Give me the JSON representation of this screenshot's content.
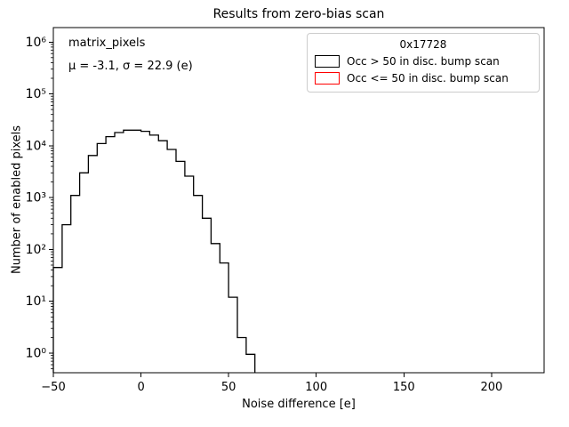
{
  "title": "Results from zero-bias scan",
  "axes": {
    "xlabel": "Noise difference [e]",
    "ylabel": "Number of enabled pixels"
  },
  "annotations": {
    "dataset": "matrix_pixels",
    "stats": "μ = -3.1, σ = 22.9 (e)"
  },
  "legend": {
    "title": "0x17728",
    "entries": [
      {
        "label": "Occ > 50 in disc. bump scan",
        "color": "#000000"
      },
      {
        "label": "Occ <= 50 in disc. bump scan",
        "color": "#ff0000"
      }
    ]
  },
  "chart_data": {
    "type": "bar",
    "histtype": "step-histogram",
    "title": "Results from zero-bias scan",
    "xlabel": "Noise difference [e]",
    "ylabel": "Number of enabled pixels",
    "yscale": "log",
    "xlim": [
      -50,
      230
    ],
    "ylim": [
      0.42,
      1900000
    ],
    "x_ticks": [
      -50,
      0,
      50,
      100,
      150,
      200
    ],
    "y_tick_exponents": [
      0,
      1,
      2,
      3,
      4,
      5,
      6
    ],
    "bin_edges": [
      -50,
      -45,
      -40,
      -35,
      -30,
      -25,
      -20,
      -15,
      -10,
      -5,
      0,
      5,
      10,
      15,
      20,
      25,
      30,
      35,
      40,
      45,
      50,
      55,
      60,
      65
    ],
    "series": [
      {
        "name": "Occ > 50 in disc. bump scan",
        "color": "#000000",
        "counts": [
          45,
          300,
          1100,
          3000,
          6500,
          11000,
          15000,
          18000,
          20000,
          20000,
          19000,
          16000,
          12500,
          8500,
          5000,
          2600,
          1100,
          400,
          130,
          55,
          12,
          2,
          0.95
        ]
      },
      {
        "name": "Occ <= 50 in disc. bump scan",
        "color": "#ff0000",
        "counts": []
      }
    ]
  }
}
